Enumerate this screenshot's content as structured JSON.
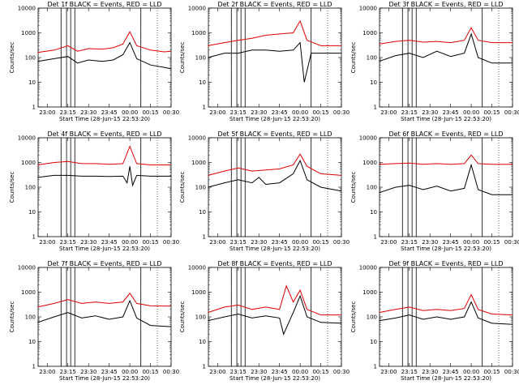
{
  "figure": {
    "x_ticks": [
      "23:00",
      "23:15",
      "23:30",
      "23:45",
      "00:00",
      "00:15",
      "00:30"
    ],
    "y_ticks": [
      "1",
      "10",
      "100",
      "1000",
      "10000"
    ],
    "xlabel": "Start Time (28-Jun-15 22:53:20)",
    "ylabel": "Counts/sec",
    "colors": {
      "events": "#000000",
      "lld": "#e00000",
      "frame": "#000000"
    }
  },
  "chart_data": [
    {
      "type": "line",
      "title": "Det 1f BLACK = Events, RED = LLD",
      "x_ticks": [
        "23:00",
        "23:15",
        "23:30",
        "23:45",
        "00:00",
        "00:15",
        "00:30"
      ],
      "ylim": [
        1,
        10000
      ],
      "yscale": "log",
      "xlabel": "",
      "ylabel": "Counts/sec",
      "series": [
        {
          "color": "#e00000",
          "x": [
            "22:53",
            "23:05",
            "23:15",
            "23:22",
            "23:30",
            "23:40",
            "23:48",
            "23:55",
            "00:00",
            "00:05",
            "00:15",
            "00:25",
            "00:30"
          ],
          "values": [
            160,
            200,
            300,
            180,
            230,
            220,
            250,
            350,
            1100,
            300,
            200,
            170,
            180
          ]
        },
        {
          "color": "#000000",
          "x": [
            "22:53",
            "23:05",
            "23:15",
            "23:22",
            "23:30",
            "23:40",
            "23:48",
            "23:55",
            "00:00",
            "00:05",
            "00:15",
            "00:25",
            "00:30"
          ],
          "values": [
            70,
            90,
            110,
            60,
            80,
            70,
            80,
            130,
            400,
            90,
            50,
            40,
            35
          ]
        }
      ]
    },
    {
      "type": "line",
      "title": "Det 2f BLACK = Events, RED = LLD",
      "x_ticks": [
        "23:00",
        "23:15",
        "23:30",
        "23:45",
        "00:00",
        "00:15",
        "00:30"
      ],
      "ylim": [
        1,
        10000
      ],
      "yscale": "log",
      "xlabel": "",
      "ylabel": "Counts/sec",
      "series": [
        {
          "color": "#e00000",
          "x": [
            "22:53",
            "23:05",
            "23:15",
            "23:25",
            "23:35",
            "23:45",
            "23:55",
            "00:00",
            "00:05",
            "00:15",
            "00:30"
          ],
          "values": [
            300,
            400,
            500,
            600,
            800,
            900,
            1000,
            3000,
            500,
            300,
            300
          ]
        },
        {
          "color": "#000000",
          "x": [
            "22:53",
            "23:05",
            "23:15",
            "23:25",
            "23:35",
            "23:45",
            "23:55",
            "00:00",
            "00:03",
            "00:08",
            "00:15",
            "00:30"
          ],
          "values": [
            100,
            150,
            150,
            200,
            200,
            180,
            200,
            400,
            10,
            150,
            150,
            150
          ]
        }
      ]
    },
    {
      "type": "line",
      "title": "Det 3f BLACK = Events, RED = LLD",
      "x_ticks": [
        "23:00",
        "23:15",
        "23:30",
        "23:45",
        "00:00",
        "00:15",
        "00:30"
      ],
      "ylim": [
        1,
        10000
      ],
      "yscale": "log",
      "xlabel": "",
      "ylabel": "Counts/sec",
      "series": [
        {
          "color": "#e00000",
          "x": [
            "22:53",
            "23:05",
            "23:15",
            "23:25",
            "23:35",
            "23:45",
            "23:55",
            "00:00",
            "00:05",
            "00:15",
            "00:30"
          ],
          "values": [
            350,
            450,
            500,
            420,
            450,
            400,
            500,
            1600,
            500,
            400,
            400
          ]
        },
        {
          "color": "#000000",
          "x": [
            "22:53",
            "23:05",
            "23:15",
            "23:25",
            "23:35",
            "23:45",
            "23:55",
            "00:00",
            "00:05",
            "00:15",
            "00:30"
          ],
          "values": [
            70,
            120,
            150,
            100,
            180,
            110,
            150,
            900,
            100,
            60,
            60
          ]
        }
      ]
    },
    {
      "type": "line",
      "title": "Det 4f BLACK = Events, RED = LLD",
      "x_ticks": [
        "23:00",
        "23:15",
        "23:30",
        "23:45",
        "00:00",
        "00:15",
        "00:30"
      ],
      "ylim": [
        1,
        10000
      ],
      "yscale": "log",
      "xlabel": "",
      "ylabel": "Counts/sec",
      "series": [
        {
          "color": "#e00000",
          "x": [
            "22:53",
            "23:05",
            "23:15",
            "23:25",
            "23:35",
            "23:45",
            "23:55",
            "00:00",
            "00:05",
            "00:15",
            "00:30"
          ],
          "values": [
            800,
            1000,
            1100,
            900,
            900,
            850,
            900,
            4500,
            900,
            800,
            800
          ]
        },
        {
          "color": "#000000",
          "x": [
            "22:53",
            "23:05",
            "23:15",
            "23:25",
            "23:35",
            "23:45",
            "23:55",
            "23:58",
            "00:00",
            "00:02",
            "00:05",
            "00:15",
            "00:30"
          ],
          "values": [
            250,
            300,
            300,
            280,
            280,
            270,
            280,
            150,
            700,
            120,
            300,
            280,
            280
          ]
        }
      ]
    },
    {
      "type": "line",
      "title": "Det 5f BLACK = Events, RED = LLD",
      "x_ticks": [
        "23:00",
        "23:15",
        "23:30",
        "23:45",
        "00:00",
        "00:15",
        "00:30"
      ],
      "ylim": [
        1,
        10000
      ],
      "yscale": "log",
      "xlabel": "",
      "ylabel": "Counts/sec",
      "series": [
        {
          "color": "#e00000",
          "x": [
            "22:53",
            "23:05",
            "23:15",
            "23:25",
            "23:35",
            "23:45",
            "23:55",
            "00:00",
            "00:05",
            "00:15",
            "00:30"
          ],
          "values": [
            300,
            450,
            600,
            450,
            500,
            550,
            800,
            2200,
            700,
            350,
            300
          ]
        },
        {
          "color": "#000000",
          "x": [
            "22:53",
            "23:05",
            "23:15",
            "23:25",
            "23:30",
            "23:35",
            "23:45",
            "23:55",
            "00:00",
            "00:05",
            "00:15",
            "00:30"
          ],
          "values": [
            100,
            150,
            200,
            150,
            250,
            130,
            150,
            350,
            1200,
            200,
            100,
            70
          ]
        }
      ]
    },
    {
      "type": "line",
      "title": "Det 6f BLACK = Events, RED = LLD",
      "x_ticks": [
        "23:00",
        "23:15",
        "23:30",
        "23:45",
        "00:00",
        "00:15",
        "00:30"
      ],
      "ylim": [
        1,
        10000
      ],
      "yscale": "log",
      "xlabel": "",
      "ylabel": "Counts/sec",
      "series": [
        {
          "color": "#e00000",
          "x": [
            "22:53",
            "23:05",
            "23:15",
            "23:25",
            "23:35",
            "23:45",
            "23:55",
            "00:00",
            "00:05",
            "00:15",
            "00:30"
          ],
          "values": [
            850,
            900,
            950,
            850,
            900,
            850,
            900,
            2000,
            900,
            850,
            850
          ]
        },
        {
          "color": "#000000",
          "x": [
            "22:53",
            "23:05",
            "23:15",
            "23:25",
            "23:35",
            "23:45",
            "23:55",
            "00:00",
            "00:05",
            "00:15",
            "00:30"
          ],
          "values": [
            60,
            100,
            120,
            80,
            110,
            70,
            90,
            800,
            80,
            50,
            50
          ]
        }
      ]
    },
    {
      "type": "line",
      "title": "Det 7f BLACK = Events, RED = LLD",
      "x_ticks": [
        "23:00",
        "23:15",
        "23:30",
        "23:45",
        "00:00",
        "00:15",
        "00:30"
      ],
      "ylim": [
        1,
        10000
      ],
      "yscale": "log",
      "xlabel": "",
      "ylabel": "Counts/sec",
      "series": [
        {
          "color": "#e00000",
          "x": [
            "22:53",
            "23:05",
            "23:15",
            "23:25",
            "23:35",
            "23:45",
            "23:55",
            "00:00",
            "00:05",
            "00:15",
            "00:30"
          ],
          "values": [
            250,
            350,
            500,
            350,
            400,
            350,
            400,
            900,
            350,
            280,
            270
          ]
        },
        {
          "color": "#000000",
          "x": [
            "22:53",
            "23:05",
            "23:15",
            "23:25",
            "23:35",
            "23:45",
            "23:55",
            "00:00",
            "00:05",
            "00:15",
            "00:30"
          ],
          "values": [
            60,
            100,
            150,
            90,
            110,
            80,
            100,
            450,
            90,
            45,
            40
          ]
        }
      ]
    },
    {
      "type": "line",
      "title": "Det 8f BLACK = Events, RED = LLD",
      "x_ticks": [
        "23:00",
        "23:15",
        "23:30",
        "23:45",
        "00:00",
        "00:15",
        "00:30"
      ],
      "ylim": [
        1,
        10000
      ],
      "yscale": "log",
      "xlabel": "",
      "ylabel": "Counts/sec",
      "series": [
        {
          "color": "#e00000",
          "x": [
            "22:53",
            "23:05",
            "23:15",
            "23:25",
            "23:35",
            "23:45",
            "23:50",
            "23:55",
            "00:00",
            "00:05",
            "00:15",
            "00:30"
          ],
          "values": [
            150,
            250,
            300,
            200,
            250,
            200,
            1800,
            400,
            1200,
            200,
            120,
            120
          ]
        },
        {
          "color": "#000000",
          "x": [
            "22:53",
            "23:05",
            "23:15",
            "23:25",
            "23:35",
            "23:45",
            "23:48",
            "23:55",
            "00:00",
            "00:05",
            "00:15",
            "00:30"
          ],
          "values": [
            70,
            100,
            130,
            90,
            110,
            90,
            20,
            150,
            700,
            100,
            60,
            55
          ]
        }
      ]
    },
    {
      "type": "line",
      "title": "Det 9f BLACK = Events, RED = LLD",
      "x_ticks": [
        "23:00",
        "23:15",
        "23:30",
        "23:45",
        "00:00",
        "00:15",
        "00:30"
      ],
      "ylim": [
        1,
        10000
      ],
      "yscale": "log",
      "xlabel": "",
      "ylabel": "Counts/sec",
      "series": [
        {
          "color": "#e00000",
          "x": [
            "22:53",
            "23:05",
            "23:15",
            "23:25",
            "23:35",
            "23:45",
            "23:55",
            "00:00",
            "00:05",
            "00:15",
            "00:30"
          ],
          "values": [
            150,
            200,
            250,
            180,
            200,
            180,
            220,
            800,
            200,
            130,
            120
          ]
        },
        {
          "color": "#000000",
          "x": [
            "22:53",
            "23:05",
            "23:15",
            "23:25",
            "23:35",
            "23:45",
            "23:55",
            "00:00",
            "00:05",
            "00:15",
            "00:30"
          ],
          "values": [
            70,
            90,
            120,
            80,
            100,
            80,
            100,
            400,
            90,
            55,
            50
          ]
        }
      ]
    }
  ]
}
